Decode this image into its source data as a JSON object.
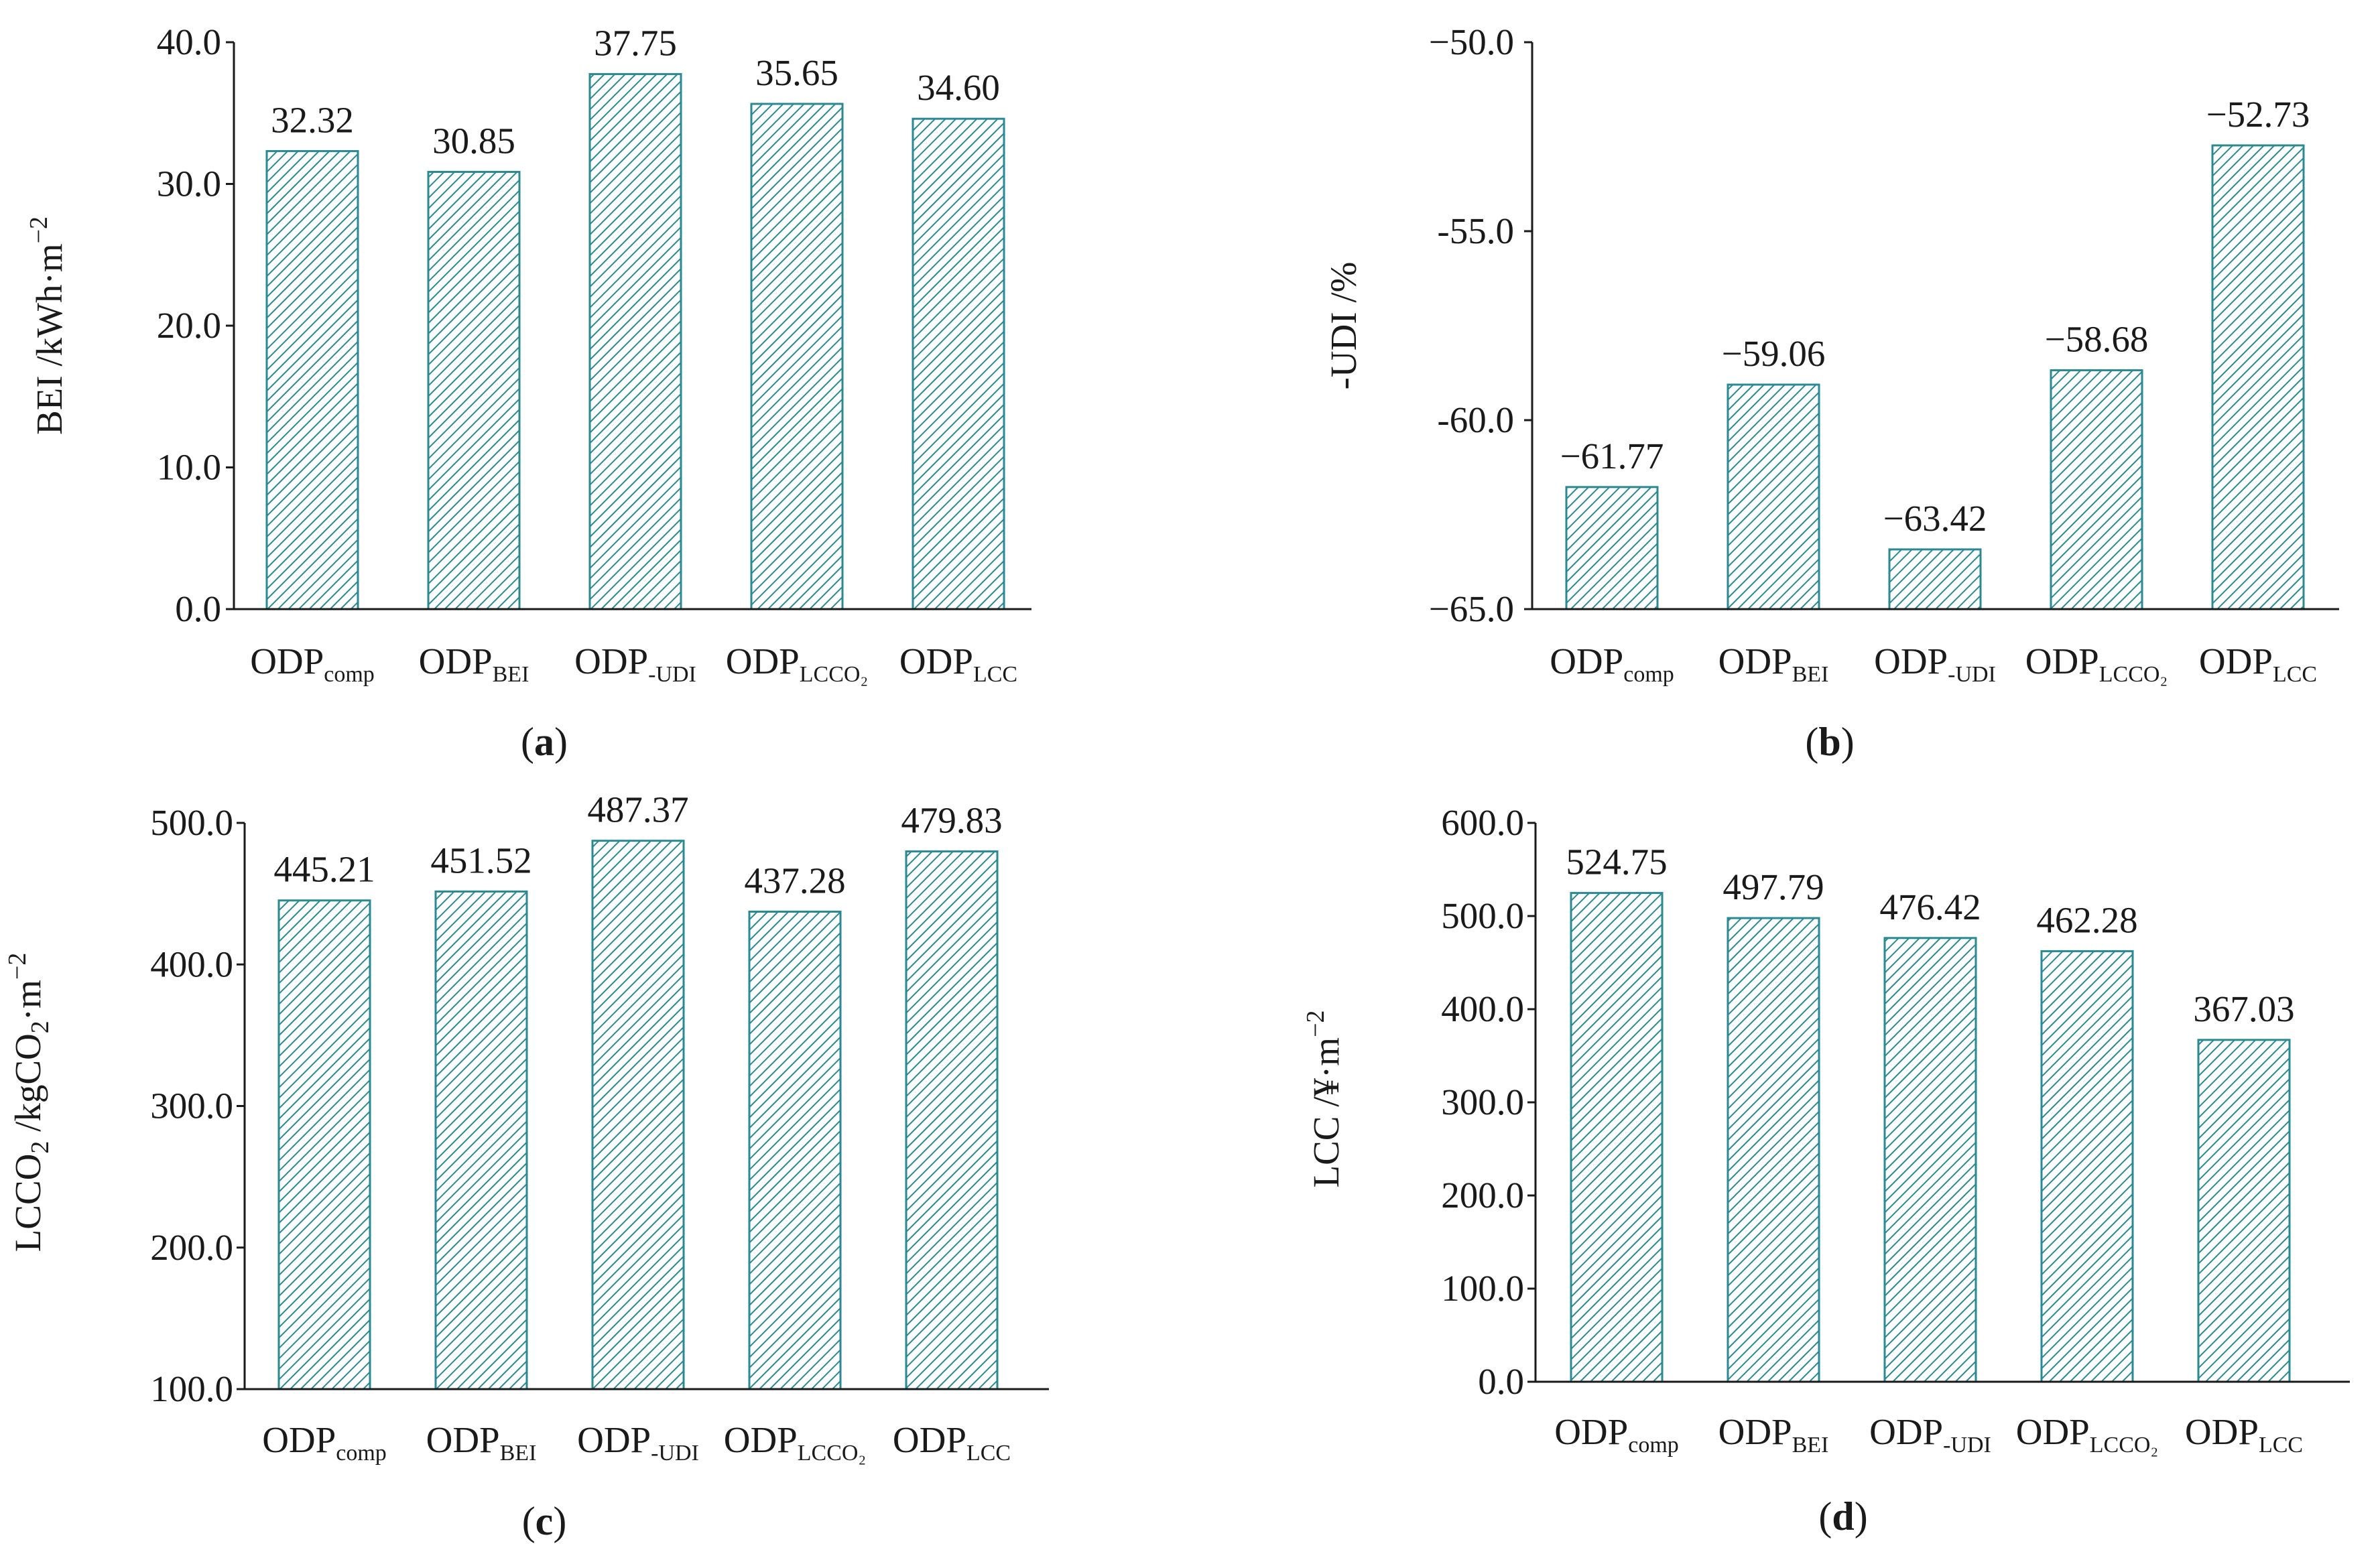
{
  "chart_data": [
    {
      "panel_label": "a",
      "type": "bar",
      "categories": [
        {
          "base": "ODP",
          "sub": "comp"
        },
        {
          "base": "ODP",
          "sub": "BEI"
        },
        {
          "base": "ODP",
          "sub": "-UDI"
        },
        {
          "base": "ODP",
          "sub": "LCCO₂"
        },
        {
          "base": "ODP",
          "sub": "LCC"
        }
      ],
      "values": [
        32.32,
        30.85,
        37.75,
        35.65,
        34.6
      ],
      "value_labels": [
        "32.32",
        "30.85",
        "37.75",
        "35.65",
        "34.60"
      ],
      "ylim": [
        0,
        40
      ],
      "yticks": [
        0,
        10,
        20,
        30,
        40
      ],
      "ytick_labels": [
        "0.0",
        "10.0",
        "20.0",
        "30.0",
        "40.0"
      ],
      "ylabel": {
        "main": "BEI /kWh·m",
        "sup": "−2",
        "sub": ""
      },
      "xlabel": "",
      "title": ""
    },
    {
      "panel_label": "b",
      "type": "bar",
      "categories": [
        {
          "base": "ODP",
          "sub": "comp"
        },
        {
          "base": "ODP",
          "sub": "BEI"
        },
        {
          "base": "ODP",
          "sub": "-UDI"
        },
        {
          "base": "ODP",
          "sub": "LCCO₂"
        },
        {
          "base": "ODP",
          "sub": "LCC"
        }
      ],
      "values": [
        -61.77,
        -59.06,
        -63.42,
        -58.68,
        -52.73
      ],
      "value_labels": [
        "−61.77",
        "−59.06",
        "−63.42",
        "−58.68",
        "−52.73"
      ],
      "ylim": [
        -65,
        -50
      ],
      "yticks": [
        -65,
        -60,
        -55,
        -50
      ],
      "ytick_labels": [
        "−65.0",
        "-60.0",
        "-55.0",
        "−50.0"
      ],
      "ylabel": {
        "main": "-UDI /%",
        "sup": "",
        "sub": ""
      },
      "xlabel": "",
      "title": ""
    },
    {
      "panel_label": "c",
      "type": "bar",
      "categories": [
        {
          "base": "ODP",
          "sub": "comp"
        },
        {
          "base": "ODP",
          "sub": "BEI"
        },
        {
          "base": "ODP",
          "sub": "-UDI"
        },
        {
          "base": "ODP",
          "sub": "LCCO₂"
        },
        {
          "base": "ODP",
          "sub": "LCC"
        }
      ],
      "values": [
        445.21,
        451.52,
        487.37,
        437.28,
        479.83
      ],
      "value_labels": [
        "445.21",
        "451.52",
        "487.37",
        "437.28",
        "479.83"
      ],
      "ylim": [
        100,
        500
      ],
      "yticks": [
        100,
        200,
        300,
        400,
        500
      ],
      "ytick_labels": [
        "100.0",
        "200.0",
        "300.0",
        "400.0",
        "500.0"
      ],
      "ylabel": {
        "parts": [
          {
            "t": "LCCO",
            "s": ""
          },
          {
            "t": "2",
            "s": "sub"
          },
          {
            "t": " /kgCO",
            "s": ""
          },
          {
            "t": "2",
            "s": "sub"
          },
          {
            "t": "·m",
            "s": ""
          },
          {
            "t": "−2",
            "s": "sup"
          }
        ]
      },
      "xlabel": "",
      "title": ""
    },
    {
      "panel_label": "d",
      "type": "bar",
      "categories": [
        {
          "base": "ODP",
          "sub": "comp"
        },
        {
          "base": "ODP",
          "sub": "BEI"
        },
        {
          "base": "ODP",
          "sub": "-UDI"
        },
        {
          "base": "ODP",
          "sub": "LCCO₂"
        },
        {
          "base": "ODP",
          "sub": "LCC"
        }
      ],
      "values": [
        524.75,
        497.79,
        476.42,
        462.28,
        367.03
      ],
      "value_labels": [
        "524.75",
        "497.79",
        "476.42",
        "462.28",
        "367.03"
      ],
      "ylim": [
        0,
        600
      ],
      "yticks": [
        0,
        100,
        200,
        300,
        400,
        500,
        600
      ],
      "ytick_labels": [
        "0.0",
        "100.0",
        "200.0",
        "300.0",
        "400.0",
        "500.0",
        "600.0"
      ],
      "ylabel": {
        "main": "LCC /¥·m",
        "sup": "−2",
        "sub": ""
      },
      "xlabel": "",
      "title": ""
    }
  ],
  "colors": {
    "bar_stroke": "#2a8a94",
    "hatch": "#2a8a94",
    "axis": "#1a1a1a",
    "text": "#1a1a1a"
  }
}
